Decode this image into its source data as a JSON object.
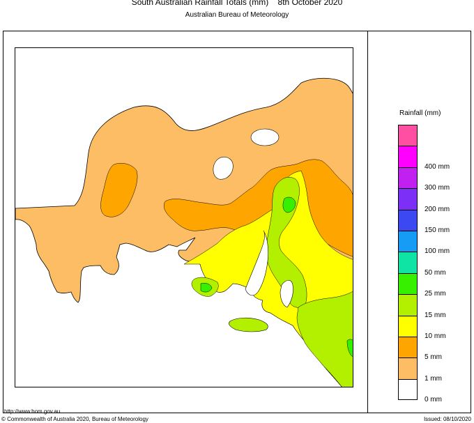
{
  "header": {
    "title": "South Australian Rainfall Totals (mm)    8th October 2020",
    "subtitle": "Australian Bureau of Meteorology"
  },
  "legend": {
    "title": "Rainfall (mm)",
    "levels": [
      {
        "label": "",
        "color": "#ff4fa3"
      },
      {
        "label": "400 mm",
        "color": "#ff00ff"
      },
      {
        "label": "300 mm",
        "color": "#c020f0"
      },
      {
        "label": "200 mm",
        "color": "#7b2ff7"
      },
      {
        "label": "150 mm",
        "color": "#3c48f2"
      },
      {
        "label": "100 mm",
        "color": "#179cf5"
      },
      {
        "label": "50 mm",
        "color": "#10e4a4"
      },
      {
        "label": "25 mm",
        "color": "#36f000"
      },
      {
        "label": "15 mm",
        "color": "#b2f000"
      },
      {
        "label": "10 mm",
        "color": "#ffff00"
      },
      {
        "label": "5 mm",
        "color": "#ffa500"
      },
      {
        "label": "1 mm",
        "color": "#fdbd64"
      },
      {
        "label": "0 mm",
        "color": "#ffffff"
      }
    ]
  },
  "map": {
    "region": "South Australia",
    "colors": {
      "r1": "#fdbd64",
      "r5": "#ffa500",
      "r10": "#ffff00",
      "r15": "#b2f000",
      "r25": "#36f000",
      "r50": "#10e4a4",
      "outline": "#000000",
      "sea": "#ffffff"
    }
  },
  "footer": {
    "url": "http://www.bom.gov.au",
    "copyright": "© Commonwealth of Australia 2020, Bureau of Meteorology",
    "issued": "Issued: 08/10/2020"
  }
}
